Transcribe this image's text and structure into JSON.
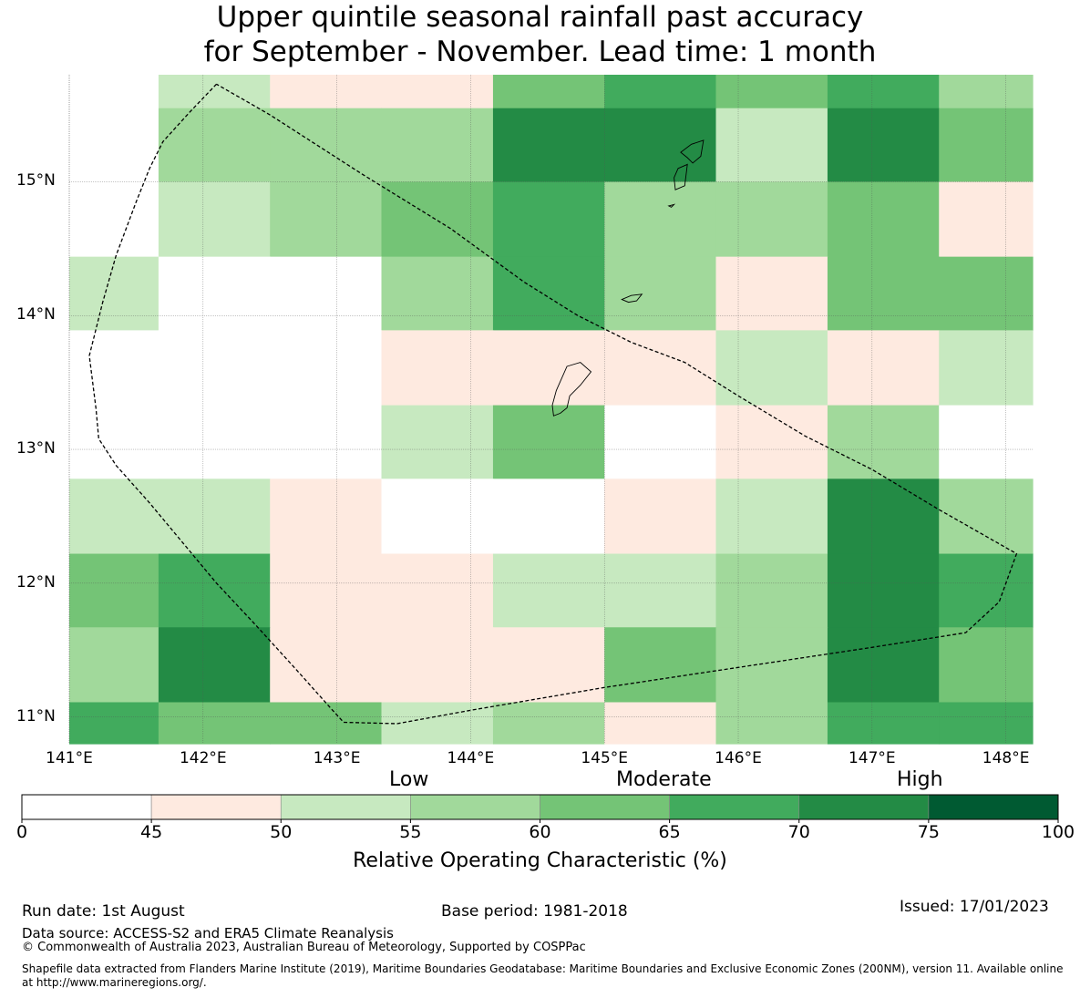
{
  "title": {
    "line1": "Upper quintile seasonal rainfall past accuracy",
    "line2": "for September - November. Lead time: 1 month"
  },
  "map": {
    "lon_range": [
      141,
      148.2
    ],
    "lat_range": [
      10.8,
      15.8
    ],
    "lat_ticks": [
      "15°N",
      "14°N",
      "13°N",
      "12°N",
      "11°N"
    ],
    "lat_values": [
      15,
      14,
      13,
      12,
      11
    ],
    "lon_ticks": [
      "141°E",
      "142°E",
      "143°E",
      "144°E",
      "145°E",
      "146°E",
      "147°E",
      "148°E"
    ],
    "lon_values": [
      141,
      142,
      143,
      144,
      145,
      146,
      147,
      148
    ],
    "grid_column_edges_lon": [
      141,
      141.667,
      142.5,
      143.333,
      144.167,
      145,
      145.833,
      146.667,
      147.5,
      148.2
    ],
    "grid_row_edges_lat": [
      15.8,
      15.55,
      15.0,
      14.44,
      13.89,
      13.33,
      12.78,
      12.22,
      11.67,
      11.11,
      10.8
    ],
    "roc_grid": [
      [
        null,
        52,
        47,
        47,
        62,
        67,
        62,
        67,
        57
      ],
      [
        null,
        57,
        57,
        57,
        72,
        72,
        52,
        72,
        62
      ],
      [
        null,
        52,
        57,
        62,
        67,
        57,
        57,
        62,
        47
      ],
      [
        52,
        null,
        null,
        57,
        67,
        57,
        47,
        62,
        62
      ],
      [
        null,
        null,
        null,
        47,
        47,
        47,
        52,
        47,
        52
      ],
      [
        null,
        null,
        null,
        52,
        62,
        null,
        47,
        57,
        null
      ],
      [
        52,
        52,
        47,
        null,
        null,
        47,
        52,
        72,
        57
      ],
      [
        62,
        67,
        47,
        47,
        52,
        52,
        57,
        72,
        67
      ],
      [
        57,
        72,
        47,
        47,
        47,
        62,
        57,
        72,
        62
      ],
      [
        67,
        62,
        62,
        52,
        57,
        47,
        57,
        67,
        67
      ]
    ],
    "eez_boundary": [
      [
        142.1,
        15.73
      ],
      [
        141.9,
        15.52
      ],
      [
        141.7,
        15.3
      ],
      [
        141.6,
        15.1
      ],
      [
        141.5,
        14.85
      ],
      [
        141.35,
        14.45
      ],
      [
        141.25,
        14.1
      ],
      [
        141.15,
        13.7
      ],
      [
        141.2,
        13.3
      ],
      [
        141.22,
        13.08
      ],
      [
        141.35,
        12.88
      ],
      [
        141.6,
        12.6
      ],
      [
        141.85,
        12.3
      ],
      [
        142.1,
        12.0
      ],
      [
        142.4,
        11.68
      ],
      [
        142.7,
        11.35
      ],
      [
        142.95,
        11.07
      ],
      [
        143.05,
        10.96
      ],
      [
        143.45,
        10.95
      ],
      [
        144.0,
        11.05
      ],
      [
        145.0,
        11.22
      ],
      [
        146.0,
        11.37
      ],
      [
        147.0,
        11.52
      ],
      [
        147.7,
        11.63
      ],
      [
        147.95,
        11.86
      ],
      [
        148.08,
        12.22
      ],
      [
        147.5,
        12.55
      ],
      [
        147.0,
        12.85
      ],
      [
        146.5,
        13.1
      ],
      [
        146.0,
        13.4
      ],
      [
        145.6,
        13.65
      ],
      [
        145.2,
        13.8
      ],
      [
        144.8,
        14.0
      ],
      [
        144.4,
        14.25
      ],
      [
        143.85,
        14.65
      ],
      [
        143.2,
        15.05
      ],
      [
        142.5,
        15.5
      ],
      [
        142.1,
        15.73
      ]
    ],
    "islands": [
      [
        [
          144.72,
          13.62
        ],
        [
          144.82,
          13.65
        ],
        [
          144.9,
          13.58
        ],
        [
          144.82,
          13.48
        ],
        [
          144.74,
          13.4
        ],
        [
          144.72,
          13.31
        ],
        [
          144.67,
          13.27
        ],
        [
          144.62,
          13.25
        ],
        [
          144.61,
          13.33
        ],
        [
          144.64,
          13.44
        ],
        [
          144.72,
          13.62
        ]
      ],
      [
        [
          145.57,
          15.22
        ],
        [
          145.65,
          15.28
        ],
        [
          145.74,
          15.31
        ],
        [
          145.72,
          15.19
        ],
        [
          145.66,
          15.14
        ],
        [
          145.62,
          15.18
        ],
        [
          145.57,
          15.22
        ]
      ],
      [
        [
          145.55,
          15.1
        ],
        [
          145.62,
          15.13
        ],
        [
          145.6,
          14.97
        ],
        [
          145.53,
          14.94
        ],
        [
          145.52,
          15.03
        ],
        [
          145.55,
          15.1
        ]
      ],
      [
        [
          145.13,
          14.12
        ],
        [
          145.2,
          14.15
        ],
        [
          145.28,
          14.16
        ],
        [
          145.24,
          14.11
        ],
        [
          145.18,
          14.1
        ],
        [
          145.13,
          14.12
        ]
      ],
      [
        [
          145.48,
          14.82
        ],
        [
          145.52,
          14.83
        ],
        [
          145.5,
          14.81
        ],
        [
          145.48,
          14.82
        ]
      ]
    ]
  },
  "colorbar": {
    "ticks": [
      "0",
      "45",
      "50",
      "55",
      "60",
      "65",
      "70",
      "75",
      "100"
    ],
    "bins": [
      {
        "from": 0,
        "to": 45,
        "color": "#ffffff"
      },
      {
        "from": 45,
        "to": 50,
        "color": "#feeae0"
      },
      {
        "from": 50,
        "to": 55,
        "color": "#c7e9c0"
      },
      {
        "from": 55,
        "to": 60,
        "color": "#a1d99b"
      },
      {
        "from": 60,
        "to": 65,
        "color": "#74c476"
      },
      {
        "from": 65,
        "to": 70,
        "color": "#41ab5d"
      },
      {
        "from": 70,
        "to": 75,
        "color": "#238b45"
      },
      {
        "from": 75,
        "to": 100,
        "color": "#005a32"
      }
    ],
    "categories": [
      "Low",
      "Moderate",
      "High"
    ],
    "label": "Relative Operating Characteristic (%)"
  },
  "footer": {
    "run_date": "Run date: 1st August",
    "base_period": "Base period: 1981-2018",
    "issued": "Issued: 17/01/2023",
    "data_source": "Data source: ACCESS-S2 and ERA5 Climate Reanalysis",
    "copyright": "© Commonwealth of Australia 2023, Australian Bureau of Meteorology, Supported by COSPPac",
    "shapefile": "Shapefile data extracted from Flanders Marine Institute (2019), Maritime Boundaries Geodatabase: Maritime Boundaries and Exclusive Economic Zones (200NM), version 11. Available online at http://www.marineregions.org/."
  }
}
